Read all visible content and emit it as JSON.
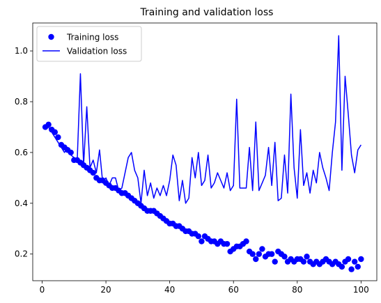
{
  "chart_data": {
    "type": "line",
    "title": "Training and validation loss",
    "xlabel": "",
    "ylabel": "",
    "xlim": [
      -2.95,
      104.95
    ],
    "ylim": [
      0.095,
      1.11
    ],
    "xticks": [
      0,
      20,
      40,
      60,
      80,
      100
    ],
    "yticks": [
      0.2,
      0.4,
      0.6,
      0.8,
      1.0
    ],
    "ytick_labels": [
      "0.2",
      "0.4",
      "0.6",
      "0.8",
      "1.0"
    ],
    "grid": false,
    "legend_position": "top-left",
    "colors": {
      "series": "#0000ff"
    },
    "series": [
      {
        "name": "Training loss",
        "style": "markers",
        "x": [
          1,
          2,
          3,
          4,
          5,
          6,
          7,
          8,
          9,
          10,
          11,
          12,
          13,
          14,
          15,
          16,
          17,
          18,
          19,
          20,
          21,
          22,
          23,
          24,
          25,
          26,
          27,
          28,
          29,
          30,
          31,
          32,
          33,
          34,
          35,
          36,
          37,
          38,
          39,
          40,
          41,
          42,
          43,
          44,
          45,
          46,
          47,
          48,
          49,
          50,
          51,
          52,
          53,
          54,
          55,
          56,
          57,
          58,
          59,
          60,
          61,
          62,
          63,
          64,
          65,
          66,
          67,
          68,
          69,
          70,
          71,
          72,
          73,
          74,
          75,
          76,
          77,
          78,
          79,
          80,
          81,
          82,
          83,
          84,
          85,
          86,
          87,
          88,
          89,
          90,
          91,
          92,
          93,
          94,
          95,
          96,
          97,
          98,
          99,
          100
        ],
        "values": [
          0.7,
          0.71,
          0.69,
          0.68,
          0.66,
          0.63,
          0.62,
          0.61,
          0.6,
          0.57,
          0.57,
          0.56,
          0.55,
          0.54,
          0.53,
          0.52,
          0.5,
          0.49,
          0.49,
          0.48,
          0.47,
          0.46,
          0.46,
          0.45,
          0.44,
          0.44,
          0.43,
          0.42,
          0.41,
          0.4,
          0.39,
          0.38,
          0.37,
          0.37,
          0.37,
          0.36,
          0.35,
          0.34,
          0.33,
          0.32,
          0.32,
          0.31,
          0.31,
          0.3,
          0.29,
          0.29,
          0.28,
          0.28,
          0.27,
          0.25,
          0.27,
          0.26,
          0.25,
          0.25,
          0.24,
          0.25,
          0.24,
          0.24,
          0.21,
          0.22,
          0.23,
          0.23,
          0.24,
          0.25,
          0.21,
          0.2,
          0.18,
          0.2,
          0.22,
          0.19,
          0.2,
          0.2,
          0.17,
          0.21,
          0.2,
          0.19,
          0.17,
          0.18,
          0.17,
          0.18,
          0.18,
          0.17,
          0.19,
          0.17,
          0.16,
          0.17,
          0.16,
          0.17,
          0.18,
          0.17,
          0.16,
          0.17,
          0.16,
          0.15,
          0.17,
          0.18,
          0.14,
          0.17,
          0.15,
          0.18
        ]
      },
      {
        "name": "Validation loss",
        "style": "line",
        "x": [
          1,
          2,
          3,
          4,
          5,
          6,
          7,
          8,
          9,
          10,
          11,
          12,
          13,
          14,
          15,
          16,
          17,
          18,
          19,
          20,
          21,
          22,
          23,
          24,
          25,
          26,
          27,
          28,
          29,
          30,
          31,
          32,
          33,
          34,
          35,
          36,
          37,
          38,
          39,
          40,
          41,
          42,
          43,
          44,
          45,
          46,
          47,
          48,
          49,
          50,
          51,
          52,
          53,
          54,
          55,
          56,
          57,
          58,
          59,
          60,
          61,
          62,
          63,
          64,
          65,
          66,
          67,
          68,
          69,
          70,
          71,
          72,
          73,
          74,
          75,
          76,
          77,
          78,
          79,
          80,
          81,
          82,
          83,
          84,
          85,
          86,
          87,
          88,
          89,
          90,
          91,
          92,
          93,
          94,
          95,
          96,
          97,
          98,
          99,
          100
        ],
        "values": [
          0.71,
          0.7,
          0.68,
          0.66,
          0.64,
          0.62,
          0.6,
          0.62,
          0.59,
          0.58,
          0.57,
          0.91,
          0.55,
          0.78,
          0.54,
          0.57,
          0.52,
          0.61,
          0.48,
          0.5,
          0.47,
          0.5,
          0.5,
          0.45,
          0.46,
          0.52,
          0.58,
          0.6,
          0.53,
          0.5,
          0.4,
          0.53,
          0.43,
          0.48,
          0.42,
          0.46,
          0.43,
          0.47,
          0.43,
          0.49,
          0.59,
          0.55,
          0.41,
          0.49,
          0.4,
          0.42,
          0.58,
          0.5,
          0.6,
          0.47,
          0.49,
          0.59,
          0.46,
          0.48,
          0.52,
          0.49,
          0.46,
          0.52,
          0.45,
          0.47,
          0.81,
          0.46,
          0.46,
          0.46,
          0.62,
          0.45,
          0.72,
          0.45,
          0.48,
          0.51,
          0.62,
          0.47,
          0.64,
          0.41,
          0.42,
          0.59,
          0.44,
          0.83,
          0.54,
          0.42,
          0.69,
          0.47,
          0.52,
          0.44,
          0.53,
          0.48,
          0.6,
          0.54,
          0.5,
          0.45,
          0.6,
          0.72,
          1.06,
          0.53,
          0.9,
          0.75,
          0.59,
          0.52,
          0.61,
          0.63
        ]
      }
    ]
  }
}
